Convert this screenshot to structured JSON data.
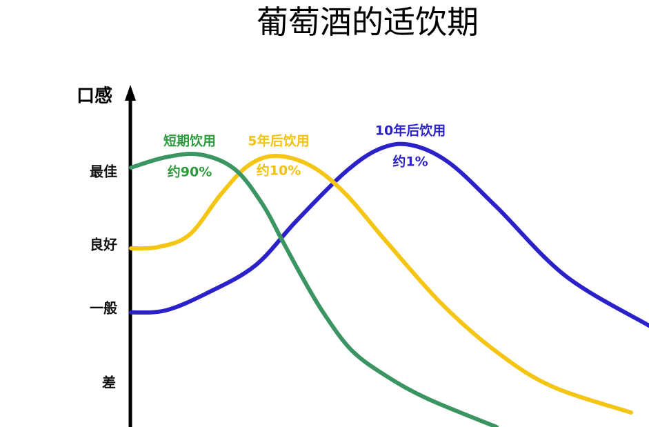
{
  "title": "葡萄酒的适饮期",
  "y_axis": {
    "label": "口感",
    "levels": [
      "最佳",
      "良好",
      "一般",
      "差"
    ]
  },
  "curves": [
    {
      "name": "短期饮用",
      "share": "约90%"
    },
    {
      "name": "5年后饮用",
      "share": "约10%"
    },
    {
      "name": "10年后饮用",
      "share": "约1%"
    }
  ]
}
